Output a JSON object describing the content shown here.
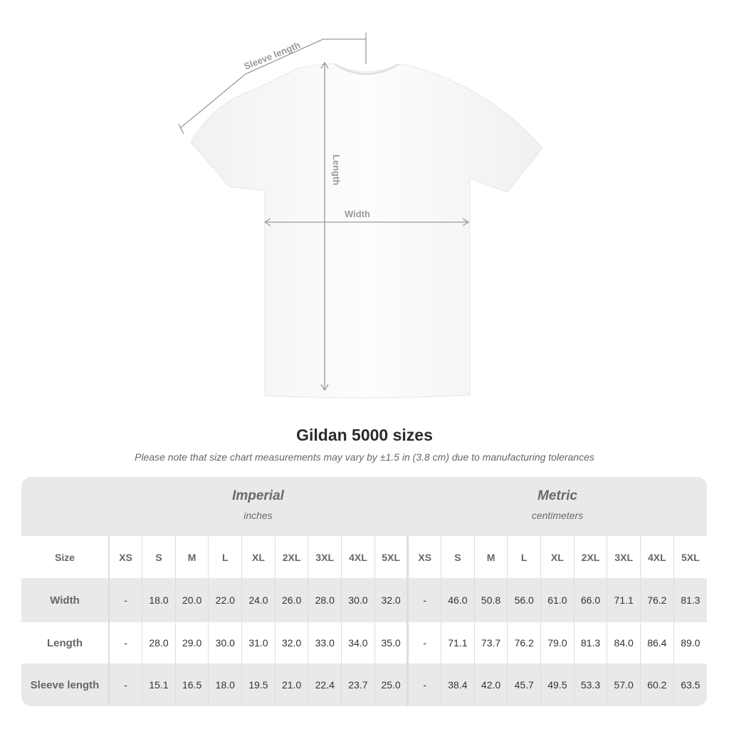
{
  "diagram": {
    "garment_color": "#ffffff",
    "measure_line_color": "#9a9a9a",
    "labels": {
      "sleeve": "Sleeve length",
      "length": "Length",
      "width": "Width"
    }
  },
  "title": "Gildan 5000 sizes",
  "note": "Please note that size chart measurements may vary by ±1.5 in (3.8 cm) due to manufacturing tolerances",
  "imperial": {
    "name": "Imperial",
    "unit": "inches"
  },
  "metric": {
    "name": "Metric",
    "unit": "centimeters"
  },
  "table": {
    "size_label": "Size",
    "sizes": [
      "XS",
      "S",
      "M",
      "L",
      "XL",
      "2XL",
      "3XL",
      "4XL",
      "5XL"
    ],
    "rows": [
      {
        "label": "Width",
        "imperial": [
          "-",
          "18.0",
          "20.0",
          "22.0",
          "24.0",
          "26.0",
          "28.0",
          "30.0",
          "32.0"
        ],
        "metric": [
          "-",
          "46.0",
          "50.8",
          "56.0",
          "61.0",
          "66.0",
          "71.1",
          "76.2",
          "81.3"
        ]
      },
      {
        "label": "Length",
        "imperial": [
          "-",
          "28.0",
          "29.0",
          "30.0",
          "31.0",
          "32.0",
          "33.0",
          "34.0",
          "35.0"
        ],
        "metric": [
          "-",
          "71.1",
          "73.7",
          "76.2",
          "79.0",
          "81.3",
          "84.0",
          "86.4",
          "89.0"
        ]
      },
      {
        "label": "Sleeve length",
        "imperial": [
          "-",
          "15.1",
          "16.5",
          "18.0",
          "19.5",
          "21.0",
          "22.4",
          "23.7",
          "25.0"
        ],
        "metric": [
          "-",
          "38.4",
          "42.0",
          "45.7",
          "49.5",
          "53.3",
          "57.0",
          "60.2",
          "63.5"
        ]
      }
    ]
  }
}
